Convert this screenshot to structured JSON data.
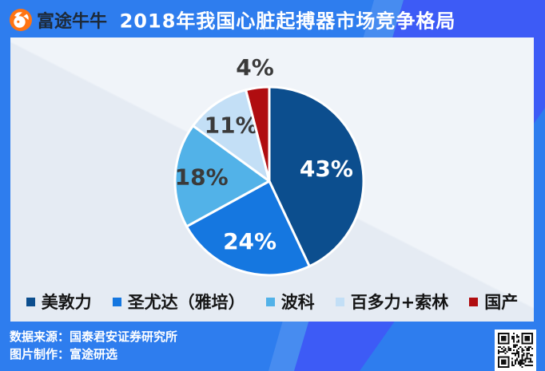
{
  "header": {
    "brand": "富途牛牛",
    "logo_icon": "futu-bull-icon",
    "title": "2018年我国心脏起搏器市场竞争格局"
  },
  "chart_data": {
    "type": "pie",
    "title": "2018年我国心脏起搏器市场竞争格局",
    "value_suffix": "%",
    "start_angle_deg": -90,
    "direction": "clockwise",
    "legend_position": "bottom",
    "segments": [
      {
        "label": "美敦力",
        "value": 43,
        "color": "#0C4E8E",
        "label_color": "#FFFFFF",
        "label_r": 0.62
      },
      {
        "label": "圣尤达（雅培）",
        "value": 24,
        "color": "#1577E0",
        "label_color": "#FFFFFF",
        "label_r": 0.67
      },
      {
        "label": "波科",
        "value": 18,
        "color": "#52B2E8",
        "label_color": "#3A3A3A",
        "label_r": 0.72
      },
      {
        "label": "百多力+索林",
        "value": 11,
        "color": "#C3DFF6",
        "label_color": "#3A3A3A",
        "label_r": 0.72
      },
      {
        "label": "国产",
        "value": 4,
        "color": "#B00D10",
        "label_color": "#3A3A3A",
        "label_r": 1.22
      }
    ]
  },
  "footer": {
    "source_label": "数据来源：",
    "source_name": "国泰君安证券研究所",
    "credit_label": "图片制作：",
    "credit_name": "富途研选",
    "qr_icon": "qr-code"
  }
}
